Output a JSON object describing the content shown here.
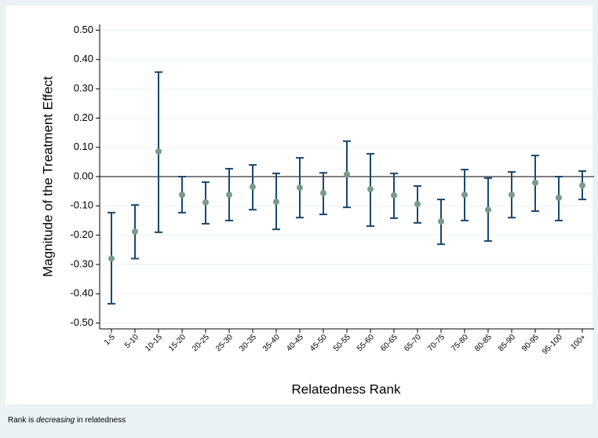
{
  "chart_data": {
    "type": "errorbar",
    "y_label": "Magnitude of the Treatment Effect",
    "x_label": "Relatedness Rank",
    "note": [
      "Rank is ",
      "decreasing",
      " in relatedness"
    ],
    "categories": [
      "1-5",
      "5-10",
      "10-15",
      "15-20",
      "20-25",
      "25-30",
      "30-35",
      "35-40",
      "40-45",
      "45-50",
      "50-55",
      "55-60",
      "60-65",
      "65-70",
      "70-75",
      "75-80",
      "80-85",
      "85-90",
      "90-95",
      "95-100",
      "100+"
    ],
    "series": [
      {
        "color": "#7a9a8a",
        "bar_color": "#1a476f",
        "values": [
          -0.28,
          -0.188,
          0.086,
          -0.062,
          -0.088,
          -0.062,
          -0.035,
          -0.086,
          -0.038,
          -0.056,
          0.008,
          -0.043,
          -0.064,
          -0.094,
          -0.153,
          -0.062,
          -0.113,
          -0.062,
          -0.021,
          -0.072,
          -0.03
        ],
        "lower": [
          -0.434,
          -0.28,
          -0.19,
          -0.123,
          -0.161,
          -0.15,
          -0.113,
          -0.18,
          -0.14,
          -0.129,
          -0.105,
          -0.169,
          -0.142,
          -0.158,
          -0.231,
          -0.15,
          -0.22,
          -0.14,
          -0.118,
          -0.15,
          -0.078
        ],
        "upper": [
          -0.123,
          -0.097,
          0.357,
          0,
          -0.019,
          0.027,
          0.04,
          0.011,
          0.064,
          0.013,
          0.121,
          0.078,
          0.011,
          -0.032,
          -0.078,
          0.024,
          -0.005,
          0.016,
          0.072,
          0,
          0.019
        ]
      }
    ],
    "ylim": [
      -0.52,
      0.52
    ],
    "yticks": [
      {
        "value": -0.5,
        "label": "-0.50"
      },
      {
        "value": -0.4,
        "label": "-0.40"
      },
      {
        "value": -0.3,
        "label": "-0.30"
      },
      {
        "value": -0.2,
        "label": "-0.20"
      },
      {
        "value": -0.1,
        "label": "-0.10"
      },
      {
        "value": 0,
        "label": "0.00"
      },
      {
        "value": 0.1,
        "label": "0.10"
      },
      {
        "value": 0.2,
        "label": "0.20"
      },
      {
        "value": 0.3,
        "label": "0.30"
      },
      {
        "value": 0.4,
        "label": "0.40"
      },
      {
        "value": 0.5,
        "label": "0.50"
      }
    ],
    "zero_line_tick": 5,
    "grid": true
  }
}
